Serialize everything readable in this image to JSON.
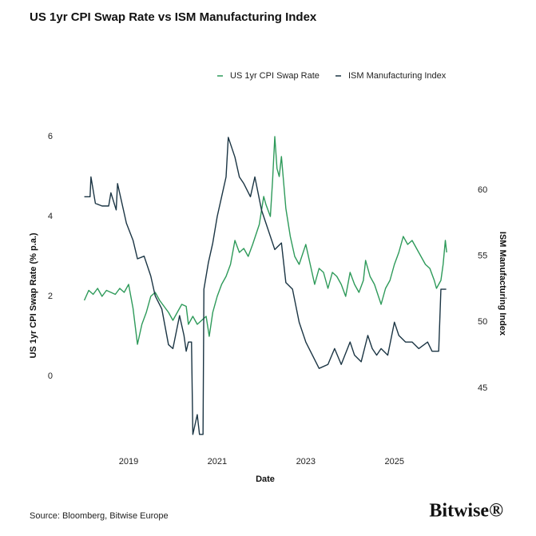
{
  "chart_data": {
    "type": "line",
    "title": "US 1yr CPI Swap Rate vs ISM Manufacturing Index",
    "x_label": "Date",
    "y_label": "US 1yr CPI Swap Rate (% p.a.)",
    "y2_label": "ISM Manufacturing Index",
    "source": "Source: Bloomberg, Bitwise Europe",
    "brand": "Bitwise®",
    "xlim": [
      2017.9,
      2026.7
    ],
    "xticks": [
      2019,
      2021,
      2023,
      2025
    ],
    "ylim": [
      -1.5,
      6.18
    ],
    "yticks": [
      0,
      2,
      4,
      6
    ],
    "y2lim": [
      41.37,
      64.6
    ],
    "y2ticks": [
      45,
      50,
      55,
      60
    ],
    "grid": false,
    "series": [
      {
        "name": "US 1yr CPI Swap Rate",
        "color": "#2e9a5a",
        "x": [
          2018.0,
          2018.1,
          2018.2,
          2018.3,
          2018.4,
          2018.5,
          2018.6,
          2018.7,
          2018.8,
          2018.9,
          2019.0,
          2019.1,
          2019.2,
          2019.3,
          2019.4,
          2019.5,
          2019.6,
          2019.7,
          2019.8,
          2019.9,
          2020.0,
          2020.1,
          2020.2,
          2020.3,
          2020.35,
          2020.45,
          2020.55,
          2020.65,
          2020.75,
          2020.82,
          2020.9,
          2021.0,
          2021.1,
          2021.2,
          2021.3,
          2021.4,
          2021.5,
          2021.6,
          2021.7,
          2021.8,
          2021.95,
          2022.05,
          2022.1,
          2022.2,
          2022.25,
          2022.3,
          2022.35,
          2022.4,
          2022.45,
          2022.55,
          2022.65,
          2022.75,
          2022.85,
          2023.0,
          2023.1,
          2023.2,
          2023.3,
          2023.4,
          2023.5,
          2023.6,
          2023.7,
          2023.8,
          2023.9,
          2024.0,
          2024.1,
          2024.2,
          2024.3,
          2024.35,
          2024.45,
          2024.55,
          2024.7,
          2024.8,
          2024.9,
          2025.0,
          2025.1,
          2025.2,
          2025.3,
          2025.4,
          2025.5,
          2025.6,
          2025.7,
          2025.8,
          2025.9,
          2025.95,
          2026.05,
          2026.1,
          2026.15,
          2026.18
        ],
        "values": [
          1.9,
          2.15,
          2.05,
          2.2,
          2.0,
          2.15,
          2.1,
          2.05,
          2.2,
          2.1,
          2.3,
          1.7,
          0.8,
          1.3,
          1.6,
          2.0,
          2.1,
          1.9,
          1.75,
          1.6,
          1.4,
          1.6,
          1.8,
          1.75,
          1.3,
          1.5,
          1.3,
          1.4,
          1.5,
          1.0,
          1.6,
          2.0,
          2.3,
          2.5,
          2.8,
          3.4,
          3.1,
          3.2,
          3.0,
          3.3,
          3.8,
          4.5,
          4.3,
          4.0,
          4.9,
          6.0,
          5.2,
          5.0,
          5.5,
          4.2,
          3.5,
          3.0,
          2.8,
          3.3,
          2.8,
          2.3,
          2.7,
          2.6,
          2.2,
          2.6,
          2.5,
          2.3,
          2.0,
          2.6,
          2.3,
          2.1,
          2.4,
          2.9,
          2.5,
          2.3,
          1.8,
          2.2,
          2.4,
          2.8,
          3.1,
          3.5,
          3.3,
          3.4,
          3.2,
          3.0,
          2.8,
          2.7,
          2.4,
          2.2,
          2.4,
          2.8,
          3.4,
          3.1
        ]
      },
      {
        "name": "ISM Manufacturing Index",
        "color": "#1b3544",
        "axis": "y2",
        "x": [
          2018.0,
          2018.13,
          2018.15,
          2018.25,
          2018.4,
          2018.55,
          2018.6,
          2018.72,
          2018.75,
          2018.95,
          2019.1,
          2019.2,
          2019.35,
          2019.5,
          2019.6,
          2019.75,
          2019.9,
          2020.0,
          2020.15,
          2020.25,
          2020.3,
          2020.35,
          2020.42,
          2020.45,
          2020.55,
          2020.6,
          2020.68,
          2020.7,
          2020.8,
          2020.9,
          2021.0,
          2021.1,
          2021.2,
          2021.25,
          2021.4,
          2021.5,
          2021.6,
          2021.75,
          2021.85,
          2022.0,
          2022.1,
          2022.3,
          2022.45,
          2022.55,
          2022.7,
          2022.85,
          2023.0,
          2023.15,
          2023.3,
          2023.5,
          2023.65,
          2023.8,
          2024.0,
          2024.1,
          2024.25,
          2024.4,
          2024.5,
          2024.6,
          2024.7,
          2024.85,
          2025.0,
          2025.1,
          2025.25,
          2025.4,
          2025.55,
          2025.75,
          2025.85,
          2026.0,
          2026.05,
          2026.17
        ],
        "values": [
          59.5,
          59.5,
          61.0,
          59.0,
          58.8,
          58.8,
          59.8,
          58.5,
          60.5,
          57.5,
          56.2,
          54.8,
          55.0,
          53.5,
          52.0,
          51.0,
          48.3,
          48.0,
          50.5,
          49.0,
          47.8,
          48.5,
          48.5,
          41.5,
          43.0,
          41.5,
          41.5,
          52.5,
          54.5,
          56.0,
          58.0,
          59.5,
          61.0,
          64.0,
          62.5,
          61.0,
          60.5,
          59.5,
          61.0,
          58.5,
          57.5,
          55.5,
          56.0,
          53.0,
          52.5,
          50.0,
          48.5,
          47.5,
          46.5,
          46.8,
          48.0,
          46.8,
          48.5,
          47.5,
          47.0,
          49.0,
          48.0,
          47.5,
          48.0,
          47.5,
          50.0,
          49.0,
          48.5,
          48.5,
          48.0,
          48.5,
          47.8,
          47.8,
          52.5,
          52.5
        ]
      }
    ]
  }
}
